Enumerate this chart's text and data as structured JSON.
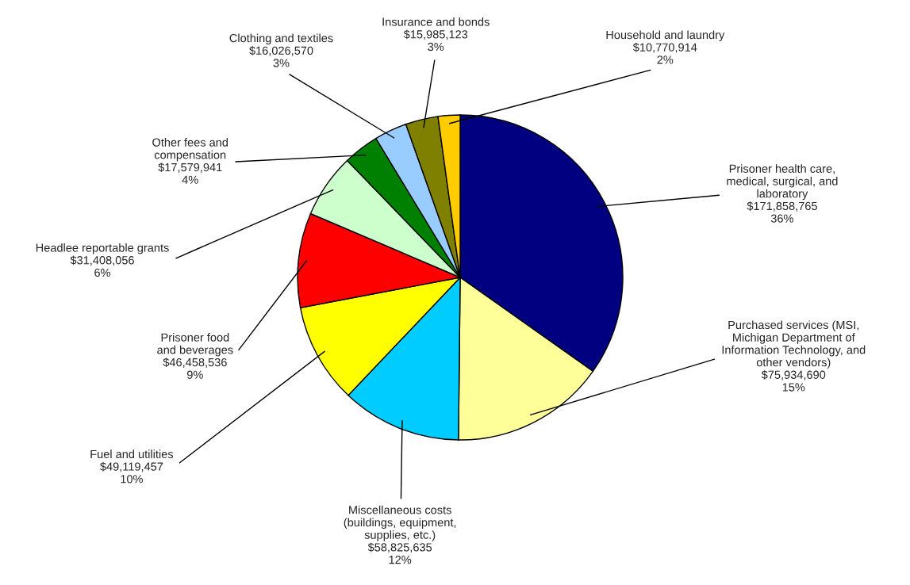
{
  "chart_data": {
    "type": "pie",
    "categories": [
      "Prisoner health care,\nmedical, surgical, and\nlaboratory",
      "Purchased services (MSI,\nMichigan Department of\nInformation Technology, and\nother vendors)",
      "Miscellaneous costs\n(buildings, equipment,\nsupplies, etc.)",
      "Fuel and utilities",
      "Prisoner food\nand beverages",
      "Headlee reportable grants",
      "Other fees and\ncompensation",
      "Clothing and textiles",
      "Insurance and bonds",
      "Household and laundry"
    ],
    "values": [
      171858765,
      75934690,
      58825635,
      49119457,
      46458536,
      31408056,
      17579941,
      16026570,
      15985123,
      10770914
    ],
    "value_labels": [
      "$171,858,765\n36%",
      "$75,934,690\n15%",
      "$58,825,635\n12%",
      "$49,119,457\n10%",
      "$46,458,536\n9%",
      "$31,408,056\n6%",
      "$17,579,941\n4%",
      "$16,026,570\n3%",
      "$15,985,123\n3%",
      "$10,770,914\n2%"
    ],
    "colors": [
      "#000080",
      "#ffff99",
      "#00ccff",
      "#ffff00",
      "#ff0000",
      "#ccffcc",
      "#008000",
      "#99ccff",
      "#808000",
      "#ffcc00"
    ],
    "legend": false
  }
}
